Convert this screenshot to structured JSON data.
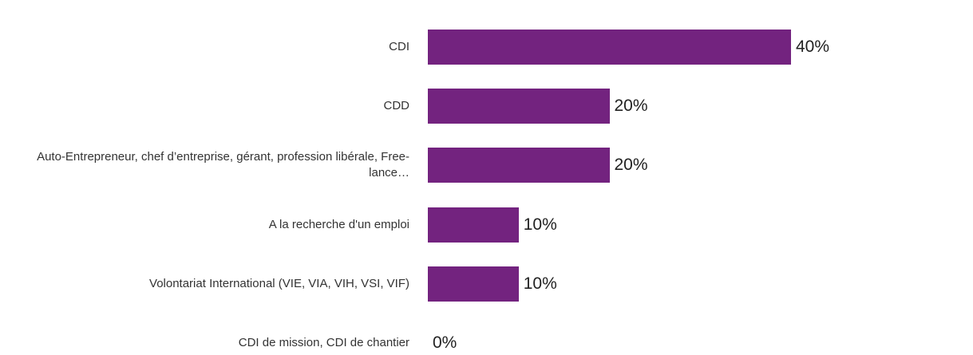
{
  "chart_data": {
    "type": "bar",
    "orientation": "horizontal",
    "categories": [
      "CDI",
      "CDD",
      "Auto-Entrepreneur, chef d’entreprise, gérant, profession libérale, Free-lance…",
      "A la recherche d'un emploi",
      "Volontariat International (VIE, VIA, VIH, VSI, VIF)",
      "CDI de mission, CDI de chantier"
    ],
    "values": [
      40,
      20,
      20,
      10,
      10,
      0
    ],
    "value_labels": [
      "40%",
      "20%",
      "20%",
      "10%",
      "10%",
      "0%"
    ],
    "color": "#73237f"
  }
}
